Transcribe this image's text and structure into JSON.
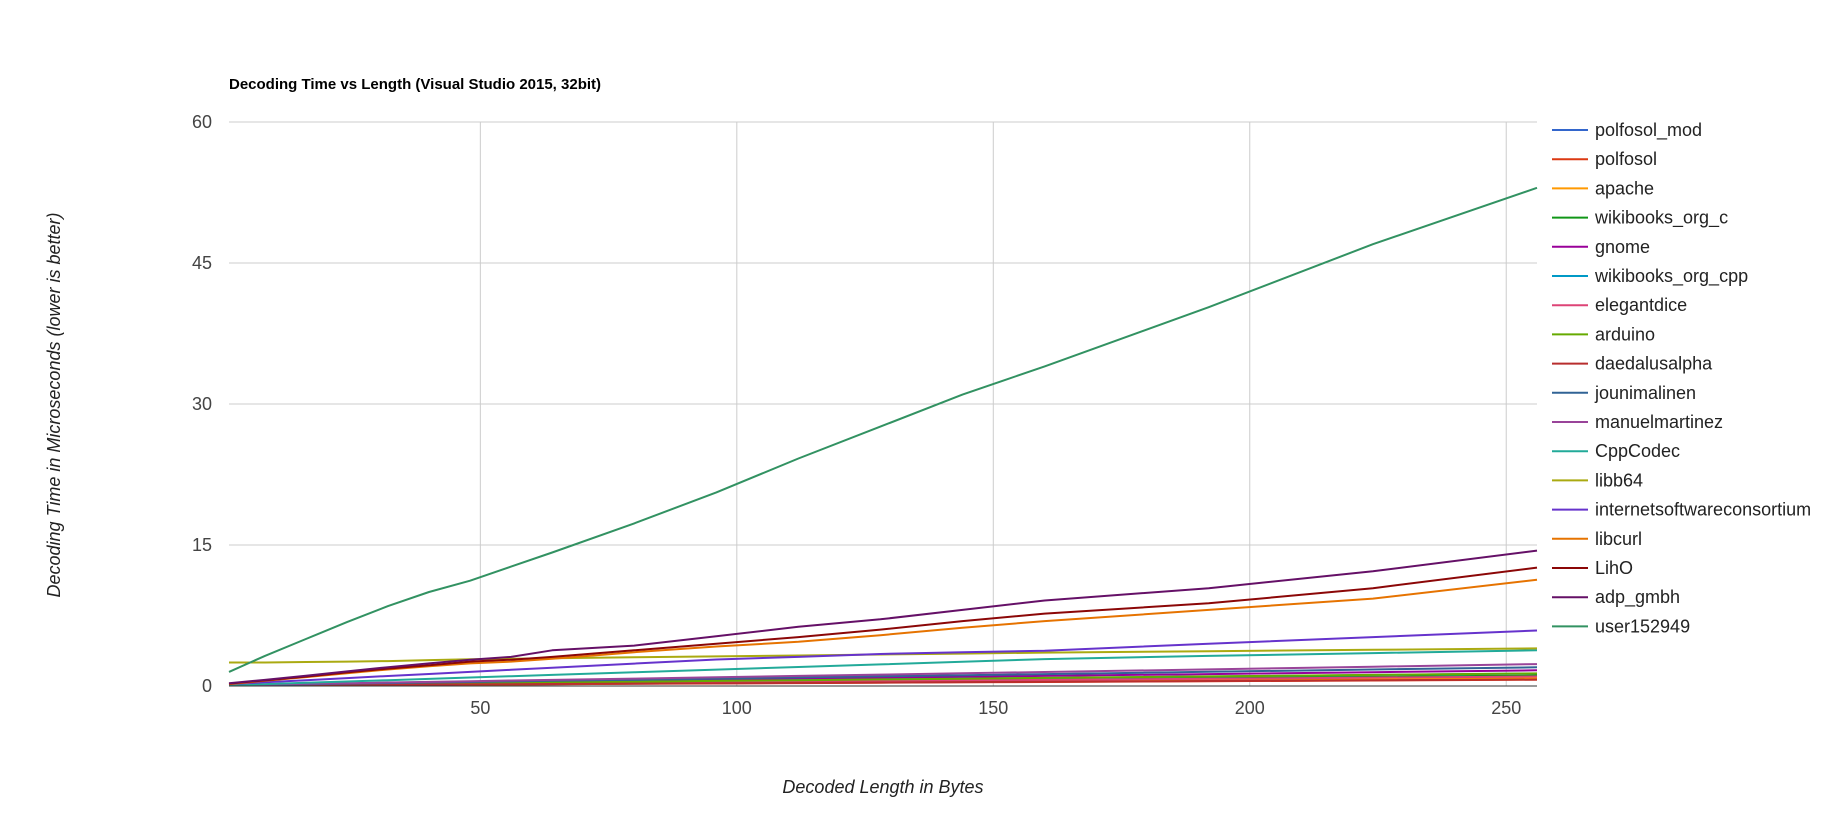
{
  "chart_data": {
    "type": "line",
    "title": "Decoding Time vs Length (Visual Studio 2015, 32bit)",
    "xlabel": "Decoded Length in Bytes",
    "ylabel": "Decoding Time in Microseconds (lower is better)",
    "xlim": [
      1,
      256
    ],
    "ylim": [
      0,
      60
    ],
    "x_ticks": [
      50,
      100,
      150,
      200,
      250
    ],
    "y_ticks": [
      0,
      15,
      30,
      45,
      60
    ],
    "grid": true,
    "legend_position": "right",
    "x": [
      1,
      8,
      16,
      24,
      32,
      40,
      48,
      56,
      64,
      80,
      96,
      112,
      128,
      144,
      160,
      192,
      224,
      256
    ],
    "series": [
      {
        "name": "polfosol_mod",
        "color": "#3366cc",
        "values": [
          0.05,
          0.06,
          0.08,
          0.1,
          0.12,
          0.14,
          0.16,
          0.18,
          0.2,
          0.25,
          0.3,
          0.35,
          0.4,
          0.45,
          0.5,
          0.6,
          0.7,
          0.8
        ]
      },
      {
        "name": "polfosol",
        "color": "#dc3912",
        "values": [
          0.05,
          0.06,
          0.08,
          0.1,
          0.11,
          0.13,
          0.15,
          0.17,
          0.19,
          0.23,
          0.27,
          0.31,
          0.35,
          0.39,
          0.43,
          0.51,
          0.59,
          0.67
        ]
      },
      {
        "name": "apache",
        "color": "#ff9900",
        "values": [
          0.05,
          0.07,
          0.09,
          0.11,
          0.13,
          0.15,
          0.17,
          0.19,
          0.22,
          0.27,
          0.32,
          0.37,
          0.42,
          0.47,
          0.52,
          0.62,
          0.72,
          0.82
        ]
      },
      {
        "name": "wikibooks_org_c",
        "color": "#109618",
        "values": [
          0.05,
          0.07,
          0.1,
          0.13,
          0.16,
          0.19,
          0.22,
          0.25,
          0.28,
          0.35,
          0.42,
          0.49,
          0.56,
          0.63,
          0.7,
          0.84,
          0.98,
          1.12
        ]
      },
      {
        "name": "gnome",
        "color": "#990099",
        "values": [
          0.08,
          0.12,
          0.17,
          0.22,
          0.27,
          0.32,
          0.37,
          0.42,
          0.47,
          0.57,
          0.67,
          0.77,
          0.87,
          0.97,
          1.07,
          1.27,
          1.47,
          1.67
        ]
      },
      {
        "name": "wikibooks_org_cpp",
        "color": "#0099c6",
        "values": [
          0.06,
          0.09,
          0.13,
          0.17,
          0.21,
          0.25,
          0.29,
          0.33,
          0.37,
          0.45,
          0.53,
          0.61,
          0.69,
          0.77,
          0.85,
          1.01,
          1.17,
          1.33
        ]
      },
      {
        "name": "elegantdice",
        "color": "#dd4477",
        "values": [
          0.05,
          0.08,
          0.11,
          0.14,
          0.17,
          0.2,
          0.23,
          0.26,
          0.29,
          0.35,
          0.41,
          0.47,
          0.53,
          0.59,
          0.65,
          0.77,
          0.89,
          1.01
        ]
      },
      {
        "name": "arduino",
        "color": "#66aa00",
        "values": [
          0.06,
          0.1,
          0.14,
          0.18,
          0.22,
          0.26,
          0.3,
          0.34,
          0.38,
          0.46,
          0.54,
          0.62,
          0.7,
          0.78,
          0.86,
          1.02,
          1.18,
          1.34
        ]
      },
      {
        "name": "daedalusalpha",
        "color": "#b82e2e",
        "values": [
          0.05,
          0.07,
          0.09,
          0.11,
          0.13,
          0.15,
          0.17,
          0.19,
          0.21,
          0.25,
          0.29,
          0.33,
          0.37,
          0.41,
          0.45,
          0.53,
          0.61,
          0.69
        ]
      },
      {
        "name": "jounimalinen",
        "color": "#316395",
        "values": [
          0.08,
          0.13,
          0.19,
          0.25,
          0.31,
          0.37,
          0.43,
          0.49,
          0.55,
          0.67,
          0.79,
          0.91,
          1.03,
          1.15,
          1.27,
          1.51,
          1.75,
          1.99
        ]
      },
      {
        "name": "manuelmartinez",
        "color": "#994499",
        "values": [
          0.1,
          0.16,
          0.23,
          0.3,
          0.37,
          0.44,
          0.51,
          0.58,
          0.65,
          0.79,
          0.93,
          1.07,
          1.21,
          1.35,
          1.49,
          1.77,
          2.05,
          2.33
        ]
      },
      {
        "name": "CppCodec",
        "color": "#22aa99",
        "values": [
          0.1,
          0.2,
          0.34,
          0.48,
          0.62,
          0.76,
          0.9,
          1.04,
          1.18,
          1.46,
          1.74,
          2.02,
          2.3,
          2.58,
          2.86,
          3.2,
          3.5,
          3.8
        ]
      },
      {
        "name": "libb64",
        "color": "#aaaa11",
        "values": [
          2.5,
          2.5,
          2.55,
          2.6,
          2.65,
          2.75,
          2.85,
          2.9,
          2.95,
          3.05,
          3.15,
          3.25,
          3.35,
          3.45,
          3.55,
          3.7,
          3.85,
          4.0
        ]
      },
      {
        "name": "internetsoftwareconsortium",
        "color": "#6633cc",
        "values": [
          0.2,
          0.4,
          0.62,
          0.84,
          1.06,
          1.28,
          1.5,
          1.72,
          1.94,
          2.38,
          2.82,
          3.1,
          3.4,
          3.6,
          3.75,
          4.5,
          5.2,
          5.9
        ]
      },
      {
        "name": "libcurl",
        "color": "#e67300",
        "values": [
          0.2,
          0.55,
          0.95,
          1.35,
          1.75,
          2.1,
          2.4,
          2.6,
          2.9,
          3.6,
          4.2,
          4.7,
          5.4,
          6.2,
          6.9,
          8.1,
          9.3,
          11.3
        ]
      },
      {
        "name": "LihO",
        "color": "#8b0707",
        "values": [
          0.25,
          0.6,
          1.0,
          1.45,
          1.85,
          2.2,
          2.6,
          2.8,
          3.1,
          3.8,
          4.5,
          5.2,
          6.0,
          6.9,
          7.7,
          8.8,
          10.4,
          12.6
        ]
      },
      {
        "name": "adp_gmbh",
        "color": "#651067",
        "values": [
          0.3,
          0.65,
          1.1,
          1.55,
          2.0,
          2.4,
          2.8,
          3.1,
          3.8,
          4.3,
          5.3,
          6.3,
          7.1,
          8.1,
          9.1,
          10.4,
          12.2,
          14.4
        ]
      },
      {
        "name": "user152949",
        "color": "#329262",
        "values": [
          1.5,
          3.2,
          5.0,
          6.8,
          8.5,
          10.0,
          11.2,
          12.7,
          14.2,
          17.3,
          20.6,
          24.2,
          27.6,
          31.0,
          34.0,
          40.3,
          47.0,
          53.0
        ]
      }
    ]
  }
}
